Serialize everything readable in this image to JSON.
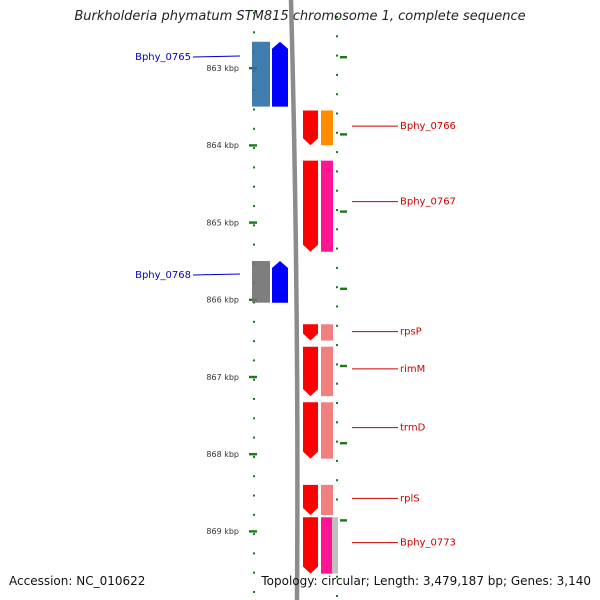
{
  "title": "Burkholderia phymatum STM815 chromosome 1, complete sequence",
  "ruler": {
    "unit": "kbp",
    "labels": [
      "863 kbp",
      "864 kbp",
      "865 kbp",
      "866 kbp",
      "867 kbp",
      "868 kbp",
      "869 kbp"
    ]
  },
  "genes": [
    {
      "name": "Bphy_0765",
      "strand": "reverse",
      "color": "#0000cc",
      "from_kbp": 862.66,
      "to_kbp": 863.5,
      "feature_colors": [
        "#2e6fa7",
        "#0000ff"
      ]
    },
    {
      "name": "Bphy_0766",
      "strand": "forward",
      "color": "#cc0000",
      "from_kbp": 864.0,
      "to_kbp": 863.55,
      "feature_colors": [
        "#ff0000",
        "#ff8c00"
      ]
    },
    {
      "name": "Bphy_0767",
      "strand": "forward",
      "color": "#cc0000",
      "from_kbp": 865.38,
      "to_kbp": 864.2,
      "feature_colors": [
        "#ff0000",
        "#ff1493"
      ]
    },
    {
      "name": "Bphy_0768",
      "strand": "reverse",
      "color": "#0000cc",
      "from_kbp": 865.5,
      "to_kbp": 866.04,
      "feature_colors": [
        "#707070",
        "#0000ff"
      ]
    },
    {
      "name": "rpsP",
      "strand": "forward",
      "color": "#cc0000",
      "from_kbp": 866.53,
      "to_kbp": 866.32,
      "feature_colors": [
        "#ff0000",
        "#f08080"
      ]
    },
    {
      "name": "rimM",
      "strand": "forward",
      "color": "#cc0000",
      "from_kbp": 867.25,
      "to_kbp": 866.61,
      "feature_colors": [
        "#ff0000",
        "#f08080"
      ]
    },
    {
      "name": "trmD",
      "strand": "forward",
      "color": "#cc0000",
      "from_kbp": 868.06,
      "to_kbp": 867.33,
      "feature_colors": [
        "#ff0000",
        "#f08080"
      ]
    },
    {
      "name": "rplS",
      "strand": "forward",
      "color": "#cc0000",
      "from_kbp": 868.79,
      "to_kbp": 868.4,
      "feature_colors": [
        "#ff0000",
        "#f08080"
      ]
    },
    {
      "name": "Bphy_0773",
      "strand": "forward",
      "color": "#cc0000",
      "from_kbp": 869.55,
      "to_kbp": 868.82,
      "feature_colors": [
        "#ff0000",
        "#ff1493",
        "#c0c0c0"
      ]
    }
  ],
  "footer": {
    "accession": "Accession: NC_010622",
    "stats": "Topology: circular; Length: 3,479,187 bp; Genes: 3,140"
  },
  "colors": {
    "backbone": "#8c8c8c",
    "tick": "#1a7a1a",
    "reverse_label": "#0000cc",
    "forward_label": "#cc0000"
  }
}
